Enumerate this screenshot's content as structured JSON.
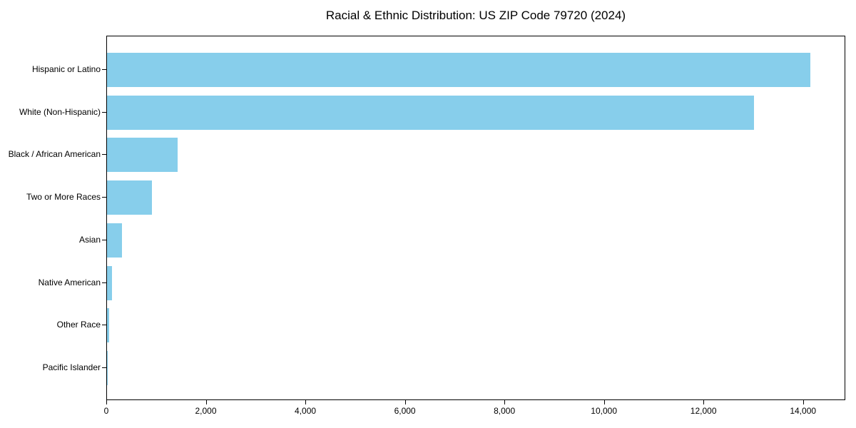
{
  "chart_data": {
    "type": "bar",
    "orientation": "horizontal",
    "title": "Racial & Ethnic Distribution: US ZIP Code 79720 (2024)",
    "categories": [
      "Hispanic or Latino",
      "White (Non-Hispanic)",
      "Black / African American",
      "Two or More Races",
      "Asian",
      "Native American",
      "Other Race",
      "Pacific Islander"
    ],
    "values": [
      14140,
      13000,
      1420,
      905,
      300,
      100,
      50,
      10
    ],
    "xlabel": "",
    "ylabel": "",
    "xlim": [
      0,
      14850
    ],
    "xticks": [
      0,
      2000,
      4000,
      6000,
      8000,
      10000,
      12000,
      14000
    ],
    "xtick_labels": [
      "0",
      "2,000",
      "4,000",
      "6,000",
      "8,000",
      "10,000",
      "12,000",
      "14,000"
    ],
    "bar_color": "#87CEEB",
    "axis_color": "#000000",
    "text_color": "#000000",
    "grid": false,
    "legend": false
  }
}
